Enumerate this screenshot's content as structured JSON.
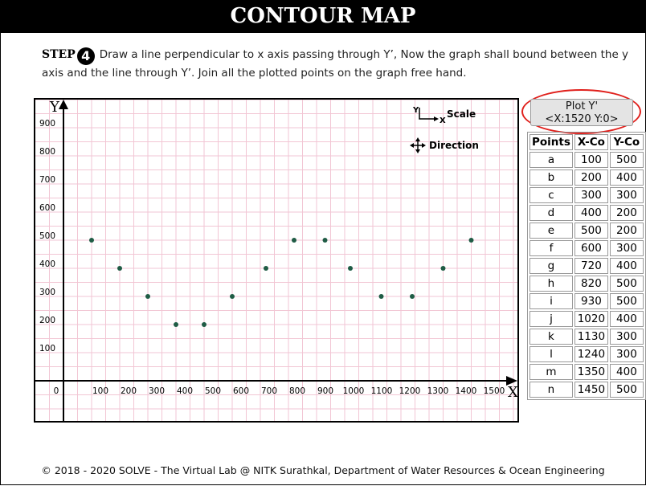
{
  "header": {
    "title": "CONTOUR MAP"
  },
  "instruction": {
    "step_label": "STEP",
    "step_number": "4",
    "text": "Draw a line perpendicular to x axis passing through Y’, Now the graph shall bound between the y axis and the line through Y’. Join all the plotted points on the graph free hand."
  },
  "chart_data": {
    "type": "scatter",
    "title": "",
    "xlabel": "X",
    "ylabel": "Y",
    "xlim": [
      -100,
      1600
    ],
    "ylim": [
      -150,
      1000
    ],
    "x_ticks": [
      0,
      100,
      200,
      300,
      400,
      500,
      600,
      700,
      800,
      900,
      1000,
      1100,
      1200,
      1300,
      1400,
      1500
    ],
    "y_ticks": [
      100,
      200,
      300,
      400,
      500,
      600,
      700,
      800,
      900
    ],
    "points": [
      {
        "x": 100,
        "y": 500
      },
      {
        "x": 200,
        "y": 400
      },
      {
        "x": 300,
        "y": 300
      },
      {
        "x": 400,
        "y": 200
      },
      {
        "x": 500,
        "y": 200
      },
      {
        "x": 600,
        "y": 300
      },
      {
        "x": 720,
        "y": 400
      },
      {
        "x": 820,
        "y": 500
      },
      {
        "x": 930,
        "y": 500
      },
      {
        "x": 1020,
        "y": 400
      },
      {
        "x": 1130,
        "y": 300
      },
      {
        "x": 1240,
        "y": 300
      },
      {
        "x": 1350,
        "y": 400
      },
      {
        "x": 1450,
        "y": 500
      }
    ],
    "point_color": "#1f5c45",
    "grid": true,
    "grid_color": "#f2c6d4",
    "legend": {
      "scale_label": "Scale",
      "scale_y": "Y",
      "scale_x": "X",
      "direction_label": "Direction"
    }
  },
  "plot_button": {
    "label": "Plot Y'",
    "coords": "<X:1520 Y:0>"
  },
  "points_table": {
    "headers": [
      "Points",
      "X-Co",
      "Y-Co"
    ],
    "rows": [
      [
        "a",
        "100",
        "500"
      ],
      [
        "b",
        "200",
        "400"
      ],
      [
        "c",
        "300",
        "300"
      ],
      [
        "d",
        "400",
        "200"
      ],
      [
        "e",
        "500",
        "200"
      ],
      [
        "f",
        "600",
        "300"
      ],
      [
        "g",
        "720",
        "400"
      ],
      [
        "h",
        "820",
        "500"
      ],
      [
        "i",
        "930",
        "500"
      ],
      [
        "j",
        "1020",
        "400"
      ],
      [
        "k",
        "1130",
        "300"
      ],
      [
        "l",
        "1240",
        "300"
      ],
      [
        "m",
        "1350",
        "400"
      ],
      [
        "n",
        "1450",
        "500"
      ]
    ]
  },
  "footer": {
    "text": "© 2018 - 2020 SOLVE - The Virtual Lab @ NITK Surathkal, Department of Water Resources & Ocean Engineering"
  }
}
